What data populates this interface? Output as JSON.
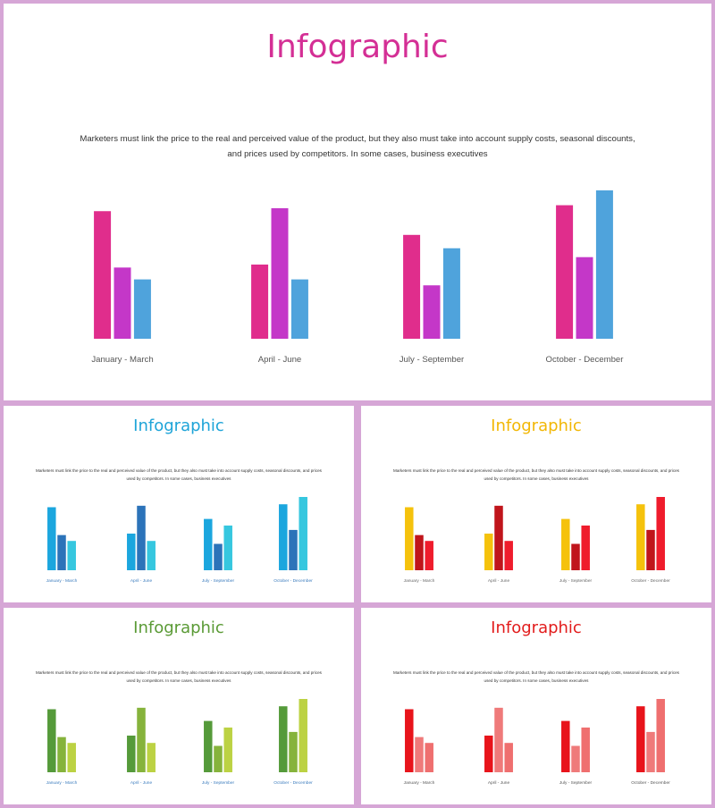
{
  "slides": [
    {
      "title": "Infographic",
      "description": "Marketers must link the price to the real and perceived value of the product, but they also must take into account supply costs, seasonal discounts, and prices used by competitors. In some cases, business executives",
      "title_color": "#d42f95",
      "label_color": "#555555",
      "colors": [
        "#e02d8c",
        "#c437c8",
        "#4fa3dc"
      ]
    },
    {
      "title": "Infographic",
      "description": "Marketers must link the price to the real and perceived value of the product, but they also must take into account supply costs, seasonal discounts, and prices used by competitors. In some cases, business executives",
      "title_color": "#1ea4d8",
      "label_color": "#3a7bbd",
      "colors": [
        "#1ba6de",
        "#2c73b9",
        "#36c7df"
      ]
    },
    {
      "title": "Infographic",
      "description": "Marketers must link the price to the real and perceived value of the product, but they also must take into account supply costs, seasonal discounts, and prices used by competitors. In some cases, business executives",
      "title_color": "#f2b705",
      "label_color": "#666666",
      "colors": [
        "#f5c20c",
        "#c0151b",
        "#ef1c2c"
      ]
    },
    {
      "title": "Infographic",
      "description": "Marketers must link the price to the real and perceived value of the product, but they also must take into account supply costs, seasonal discounts, and prices used by competitors. In some cases, business executives",
      "title_color": "#5a9a35",
      "label_color": "#3a7bbd",
      "colors": [
        "#559a3a",
        "#86b33c",
        "#bcd243"
      ]
    },
    {
      "title": "Infographic",
      "description": "Marketers must link the price to the real and perceived value of the product, but they also must take into account supply costs, seasonal discounts, and prices used by competitors. In some cases, business executives",
      "title_color": "#e21c1c",
      "label_color": "#555555",
      "colors": [
        "#e8141b",
        "#ef7a7a",
        "#ef6f6f"
      ]
    }
  ],
  "chart_data": {
    "type": "bar",
    "categories": [
      "January  - March",
      "April - June",
      "July - September",
      "October - December"
    ],
    "series": [
      {
        "values": [
          86,
          50,
          70,
          90
        ]
      },
      {
        "values": [
          48,
          88,
          36,
          55
        ]
      },
      {
        "values": [
          40,
          40,
          61,
          100
        ]
      }
    ],
    "ylim": [
      0,
      100
    ],
    "grid": false
  }
}
